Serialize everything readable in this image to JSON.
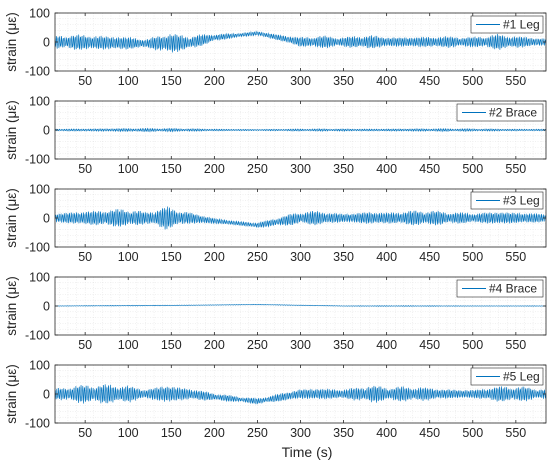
{
  "chart_data": {
    "type": "line",
    "xlabel": "Time (s)",
    "ylabel": "strain (με)",
    "xlim": [
      15,
      585
    ],
    "ylim": [
      -100,
      100
    ],
    "xticks": [
      50,
      100,
      150,
      200,
      250,
      300,
      350,
      400,
      450,
      500,
      550
    ],
    "yticks": [
      -100,
      0,
      100
    ],
    "grid": true,
    "grid_style": "dotted",
    "line_color": "#0072BD",
    "legend_location": "top-right",
    "panels": [
      {
        "series_name": "#1 Leg",
        "envelope_time": [
          15,
          40,
          70,
          100,
          120,
          145,
          160,
          180,
          200,
          230,
          260,
          290,
          320,
          350,
          380,
          400,
          440,
          470,
          500,
          530,
          560,
          585
        ],
        "envelope_amp": [
          20,
          28,
          30,
          28,
          15,
          35,
          25,
          20,
          12,
          8,
          10,
          15,
          20,
          15,
          25,
          20,
          22,
          20,
          15,
          25,
          20,
          15
        ],
        "offset_time": [
          15,
          120,
          170,
          200,
          250,
          300,
          400,
          585
        ],
        "offset_value": [
          0,
          -5,
          -3,
          15,
          30,
          0,
          0,
          0
        ]
      },
      {
        "series_name": "#2 Brace",
        "envelope_time": [
          15,
          80,
          150,
          250,
          350,
          420,
          500,
          585
        ],
        "envelope_amp": [
          4,
          6,
          5,
          3,
          4,
          5,
          4,
          4
        ],
        "offset_time": [
          15,
          585
        ],
        "offset_value": [
          0,
          0
        ]
      },
      {
        "series_name": "#3 Leg",
        "envelope_time": [
          15,
          40,
          70,
          100,
          120,
          145,
          160,
          180,
          200,
          230,
          260,
          290,
          320,
          350,
          380,
          400,
          440,
          470,
          500,
          530,
          560,
          585
        ],
        "envelope_amp": [
          20,
          28,
          30,
          30,
          18,
          40,
          28,
          20,
          12,
          8,
          10,
          18,
          25,
          18,
          28,
          22,
          25,
          20,
          18,
          28,
          22,
          15
        ],
        "offset_time": [
          15,
          120,
          170,
          200,
          250,
          300,
          400,
          585
        ],
        "offset_value": [
          0,
          0,
          0,
          -10,
          -25,
          0,
          0,
          0
        ]
      },
      {
        "series_name": "#4 Brace",
        "envelope_time": [
          15,
          150,
          250,
          400,
          585
        ],
        "envelope_amp": [
          1,
          1.5,
          1,
          1.5,
          1
        ],
        "offset_time": [
          15,
          150,
          250,
          350,
          585
        ],
        "offset_value": [
          0,
          2,
          5,
          0,
          0
        ]
      },
      {
        "series_name": "#5 Leg",
        "envelope_time": [
          15,
          40,
          70,
          100,
          120,
          145,
          160,
          180,
          200,
          230,
          260,
          290,
          320,
          350,
          380,
          400,
          440,
          470,
          500,
          530,
          560,
          585
        ],
        "envelope_amp": [
          20,
          28,
          30,
          30,
          18,
          40,
          28,
          20,
          12,
          8,
          10,
          18,
          25,
          18,
          28,
          22,
          25,
          20,
          18,
          28,
          22,
          15
        ],
        "offset_time": [
          15,
          120,
          170,
          200,
          250,
          300,
          400,
          585
        ],
        "offset_value": [
          0,
          0,
          0,
          -10,
          -25,
          0,
          0,
          0
        ]
      }
    ]
  }
}
